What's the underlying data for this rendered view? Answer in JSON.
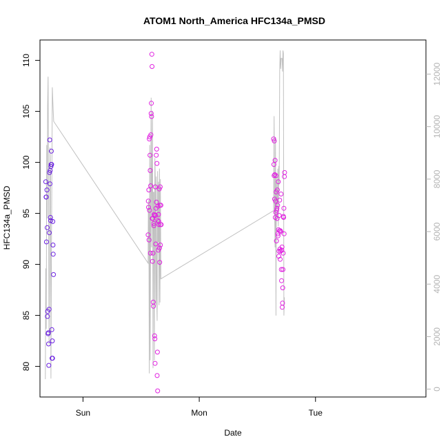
{
  "chart_data": {
    "type": "scatter",
    "title": "ATOM1 North_America HFC134a_PMSD",
    "xlabel": "Date",
    "ylabel": "HFC134a_PMSD",
    "x_ticks": [
      "Sun",
      "Mon",
      "Tue"
    ],
    "x_tick_positions_days": [
      1,
      2,
      3
    ],
    "x_range_days": [
      0.63,
      3.95
    ],
    "ylim": [
      77,
      112
    ],
    "y_ticks": [
      80,
      85,
      90,
      95,
      100,
      105,
      110
    ],
    "y2lim": [
      -300,
      13300
    ],
    "y2_ticks": [
      0,
      2000,
      4000,
      6000,
      8000,
      10000,
      12000
    ],
    "grid": false,
    "colors": {
      "early": "#6a1fe0",
      "late": "#e020e0",
      "altitude_line": "#c0c0c0"
    },
    "series": [
      {
        "points": [
          [
            0.68,
            98.1
          ],
          [
            0.682,
            96.6
          ],
          [
            0.684,
            96.6
          ],
          [
            0.686,
            92.2
          ],
          [
            0.69,
            97.3
          ],
          [
            0.692,
            93.6
          ],
          [
            0.694,
            84.9
          ],
          [
            0.696,
            85.4
          ],
          [
            0.7,
            83.2
          ],
          [
            0.702,
            83.3
          ],
          [
            0.704,
            82.2
          ],
          [
            0.706,
            80.1
          ],
          [
            0.708,
            85.6
          ],
          [
            0.71,
            93.1
          ],
          [
            0.712,
            99.0
          ],
          [
            0.714,
            102.2
          ],
          [
            0.716,
            97.9
          ],
          [
            0.718,
            99.2
          ],
          [
            0.72,
            94.6
          ],
          [
            0.722,
            94.3
          ],
          [
            0.724,
            99.6
          ],
          [
            0.726,
            99.8
          ],
          [
            0.728,
            101.1
          ],
          [
            0.73,
            99.8
          ],
          [
            0.732,
            83.6
          ],
          [
            0.734,
            80.8
          ],
          [
            0.736,
            82.5
          ],
          [
            0.738,
            80.8
          ],
          [
            0.74,
            94.2
          ],
          [
            0.742,
            91.9
          ],
          [
            0.744,
            91.0
          ],
          [
            0.746,
            89.0
          ]
        ]
      },
      {
        "points": [
          [
            1.56,
            92.9
          ],
          [
            1.562,
            96.2
          ],
          [
            1.564,
            95.6
          ],
          [
            1.566,
            97.3
          ],
          [
            1.568,
            92.4
          ],
          [
            1.57,
            102.3
          ],
          [
            1.572,
            95.3
          ],
          [
            1.574,
            102.5
          ],
          [
            1.576,
            100.7
          ],
          [
            1.578,
            99.2
          ],
          [
            1.58,
            91.1
          ],
          [
            1.582,
            97.7
          ],
          [
            1.584,
            102.7
          ],
          [
            1.586,
            104.8
          ],
          [
            1.588,
            105.8
          ],
          [
            1.59,
            104.5
          ],
          [
            1.592,
            110.6
          ],
          [
            1.594,
            109.4
          ],
          [
            1.596,
            94.5
          ],
          [
            1.598,
            90.3
          ],
          [
            1.6,
            94.5
          ],
          [
            1.602,
            91.1
          ],
          [
            1.604,
            86.3
          ],
          [
            1.606,
            85.9
          ],
          [
            1.608,
            94.0
          ],
          [
            1.61,
            93.8
          ],
          [
            1.612,
            94.9
          ],
          [
            1.614,
            94.8
          ],
          [
            1.616,
            83.0
          ],
          [
            1.618,
            82.7
          ],
          [
            1.62,
            80.3
          ],
          [
            1.622,
            97.6
          ],
          [
            1.624,
            94.8
          ],
          [
            1.626,
            92.0
          ],
          [
            1.628,
            95.5
          ],
          [
            1.63,
            100.7
          ],
          [
            1.632,
            96.1
          ],
          [
            1.634,
            101.3
          ],
          [
            1.636,
            99.9
          ],
          [
            1.638,
            79.1
          ],
          [
            1.64,
            81.4
          ],
          [
            1.642,
            77.6
          ],
          [
            1.644,
            94.3
          ],
          [
            1.646,
            95.7
          ],
          [
            1.648,
            91.4
          ],
          [
            1.65,
            94.9
          ],
          [
            1.652,
            94.2
          ],
          [
            1.654,
            93.9
          ],
          [
            1.656,
            97.4
          ],
          [
            1.658,
            91.6
          ],
          [
            1.66,
            90.2
          ],
          [
            1.662,
            95.8
          ],
          [
            1.664,
            97.6
          ],
          [
            1.666,
            91.9
          ],
          [
            1.668,
            93.9
          ],
          [
            1.67,
            95.8
          ],
          [
            1.672,
            93.9
          ],
          [
            2.64,
            102.3
          ],
          [
            2.642,
            99.8
          ],
          [
            2.644,
            98.7
          ],
          [
            2.646,
            102.1
          ],
          [
            2.648,
            96.4
          ],
          [
            2.65,
            98.8
          ],
          [
            2.652,
            100.2
          ],
          [
            2.654,
            94.6
          ],
          [
            2.656,
            96.2
          ],
          [
            2.658,
            95.1
          ],
          [
            2.66,
            98.7
          ],
          [
            2.662,
            97.1
          ],
          [
            2.664,
            92.3
          ],
          [
            2.666,
            95.3
          ],
          [
            2.668,
            95.5
          ],
          [
            2.67,
            94.5
          ],
          [
            2.672,
            97.3
          ],
          [
            2.674,
            95.8
          ],
          [
            2.676,
            93.0
          ],
          [
            2.678,
            92.8
          ],
          [
            2.68,
            98.1
          ],
          [
            2.682,
            93.4
          ],
          [
            2.684,
            90.8
          ],
          [
            2.686,
            91.3
          ],
          [
            2.688,
            94.8
          ],
          [
            2.69,
            93.3
          ],
          [
            2.692,
            96.3
          ],
          [
            2.694,
            91.5
          ],
          [
            2.696,
            90.5
          ],
          [
            2.698,
            93.3
          ],
          [
            2.7,
            91.3
          ],
          [
            2.702,
            93.2
          ],
          [
            2.704,
            96.9
          ],
          [
            2.706,
            89.5
          ],
          [
            2.708,
            88.4
          ],
          [
            2.71,
            91.4
          ],
          [
            2.712,
            91.7
          ],
          [
            2.714,
            85.8
          ],
          [
            2.716,
            86.2
          ],
          [
            2.718,
            87.7
          ],
          [
            2.72,
            89.5
          ],
          [
            2.722,
            91.1
          ],
          [
            2.724,
            94.7
          ],
          [
            2.726,
            94.6
          ],
          [
            2.728,
            95.5
          ],
          [
            2.73,
            93.0
          ],
          [
            2.732,
            98.6
          ],
          [
            2.734,
            99.0
          ]
        ]
      }
    ],
    "altitude_line": [
      [
        0.676,
        380
      ],
      [
        0.68,
        4600
      ],
      [
        0.684,
        2300
      ],
      [
        0.688,
        9300
      ],
      [
        0.692,
        6500
      ],
      [
        0.696,
        10800
      ],
      [
        0.7,
        11900
      ],
      [
        0.704,
        7200
      ],
      [
        0.708,
        1700
      ],
      [
        0.712,
        3800
      ],
      [
        0.716,
        9200
      ],
      [
        0.72,
        8400
      ],
      [
        0.724,
        400
      ],
      [
        0.728,
        4500
      ],
      [
        0.732,
        7800
      ],
      [
        0.736,
        11500
      ],
      [
        0.74,
        11000
      ],
      [
        0.744,
        10600
      ],
      [
        0.748,
        10200
      ],
      [
        1.56,
        4800
      ],
      [
        1.562,
        7000
      ],
      [
        1.566,
        7200
      ],
      [
        1.57,
        600
      ],
      [
        1.574,
        9300
      ],
      [
        1.578,
        1100
      ],
      [
        1.582,
        7200
      ],
      [
        1.586,
        11100
      ],
      [
        1.59,
        5400
      ],
      [
        1.594,
        8200
      ],
      [
        1.598,
        10600
      ],
      [
        1.602,
        800
      ],
      [
        1.606,
        7500
      ],
      [
        1.61,
        7500
      ],
      [
        1.614,
        1100
      ],
      [
        1.618,
        8800
      ],
      [
        1.622,
        8000
      ],
      [
        1.626,
        3200
      ],
      [
        1.63,
        8100
      ],
      [
        1.634,
        3500
      ],
      [
        1.638,
        2600
      ],
      [
        1.642,
        8300
      ],
      [
        1.646,
        5600
      ],
      [
        1.65,
        7900
      ],
      [
        1.654,
        3200
      ],
      [
        1.658,
        8400
      ],
      [
        1.662,
        3300
      ],
      [
        1.666,
        8000
      ],
      [
        1.67,
        4200
      ],
      [
        2.64,
        6800
      ],
      [
        2.644,
        10400
      ],
      [
        2.648,
        6900
      ],
      [
        2.652,
        5400
      ],
      [
        2.656,
        9600
      ],
      [
        2.66,
        2800
      ],
      [
        2.664,
        8200
      ],
      [
        2.668,
        6900
      ],
      [
        2.672,
        7100
      ],
      [
        2.676,
        8400
      ],
      [
        2.68,
        6200
      ],
      [
        2.684,
        8500
      ],
      [
        2.688,
        7800
      ],
      [
        2.692,
        12100
      ],
      [
        2.696,
        12900
      ],
      [
        2.7,
        12200
      ],
      [
        2.704,
        12600
      ],
      [
        2.708,
        12600
      ],
      [
        2.712,
        12600
      ],
      [
        2.716,
        12100
      ],
      [
        2.72,
        12900
      ],
      [
        2.724,
        12800
      ],
      [
        2.728,
        2800
      ],
      [
        2.732,
        3500
      ]
    ]
  }
}
